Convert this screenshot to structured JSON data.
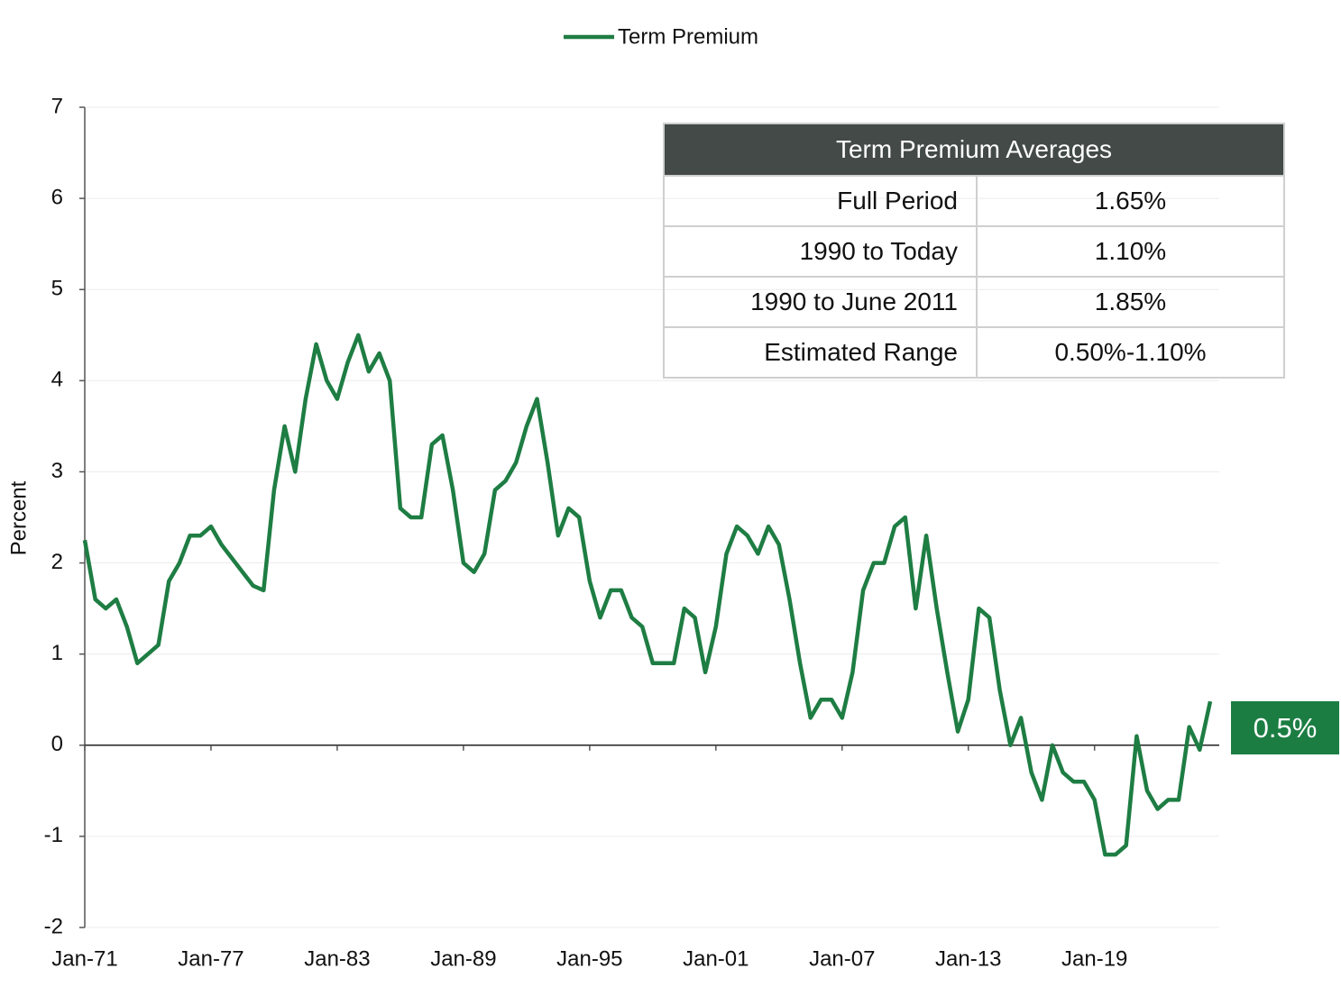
{
  "chart_data": {
    "type": "line",
    "ylabel": "Percent",
    "categories": [
      "Jan-71",
      null,
      null,
      null,
      null,
      null,
      null,
      null,
      null,
      null,
      null,
      null,
      "Jan-77",
      null,
      null,
      null,
      null,
      null,
      null,
      null,
      null,
      null,
      null,
      null,
      "Jan-83",
      null,
      null,
      null,
      null,
      null,
      null,
      null,
      null,
      null,
      null,
      null,
      "Jan-89",
      null,
      null,
      null,
      null,
      null,
      null,
      null,
      null,
      null,
      null,
      null,
      "Jan-95",
      null,
      null,
      null,
      null,
      null,
      null,
      null,
      null,
      null,
      null,
      null,
      "Jan-01",
      null,
      null,
      null,
      null,
      null,
      null,
      null,
      null,
      null,
      null,
      null,
      "Jan-07",
      null,
      null,
      null,
      null,
      null,
      null,
      null,
      null,
      null,
      null,
      null,
      "Jan-13",
      null,
      null,
      null,
      null,
      null,
      null,
      null,
      null,
      null,
      null,
      null,
      "Jan-19",
      null,
      null,
      null,
      null,
      null,
      null,
      null,
      null,
      null,
      null,
      null
    ],
    "series": [
      {
        "name": "Term Premium",
        "color": "#1e7d43",
        "values": [
          2.25,
          1.6,
          1.5,
          1.6,
          1.3,
          0.9,
          1.0,
          1.1,
          1.8,
          2.0,
          2.3,
          2.3,
          2.4,
          2.2,
          2.05,
          1.9,
          1.75,
          1.7,
          2.8,
          3.5,
          3.0,
          3.8,
          4.4,
          4.0,
          3.8,
          4.2,
          4.5,
          4.1,
          4.3,
          4.0,
          2.6,
          2.5,
          2.5,
          3.3,
          3.4,
          2.8,
          2.0,
          1.9,
          2.1,
          2.8,
          2.9,
          3.1,
          3.5,
          3.8,
          3.1,
          2.3,
          2.6,
          2.5,
          1.8,
          1.4,
          1.7,
          1.7,
          1.4,
          1.3,
          0.9,
          0.9,
          0.9,
          1.5,
          1.4,
          0.8,
          1.3,
          2.1,
          2.4,
          2.3,
          2.1,
          2.4,
          2.2,
          1.6,
          0.9,
          0.3,
          0.5,
          0.5,
          0.3,
          0.8,
          1.7,
          2.0,
          2.0,
          2.4,
          2.5,
          1.5,
          2.3,
          1.5,
          0.8,
          0.15,
          0.5,
          1.5,
          1.4,
          0.6,
          0.0,
          0.3,
          -0.3,
          -0.6,
          0.0,
          -0.3,
          -0.4,
          -0.4,
          -0.6,
          -1.2,
          -1.2,
          -1.1,
          0.1,
          -0.5,
          -0.7,
          -0.6,
          -0.6,
          0.2,
          -0.05,
          0.48
        ]
      }
    ],
    "ylim": [
      -2,
      7
    ],
    "yticks": [
      -2,
      -1,
      0,
      1,
      2,
      3,
      4,
      5,
      6,
      7
    ],
    "grid": true,
    "legend": "top",
    "annotation": "0.5%"
  },
  "table": {
    "title": "Term Premium Averages",
    "rows": [
      [
        "Full Period",
        "1.65%"
      ],
      [
        "1990 to Today",
        "1.10%"
      ],
      [
        "1990 to June 2011",
        "1.85%"
      ],
      [
        "Estimated Range",
        "0.50%-1.10%"
      ]
    ]
  }
}
